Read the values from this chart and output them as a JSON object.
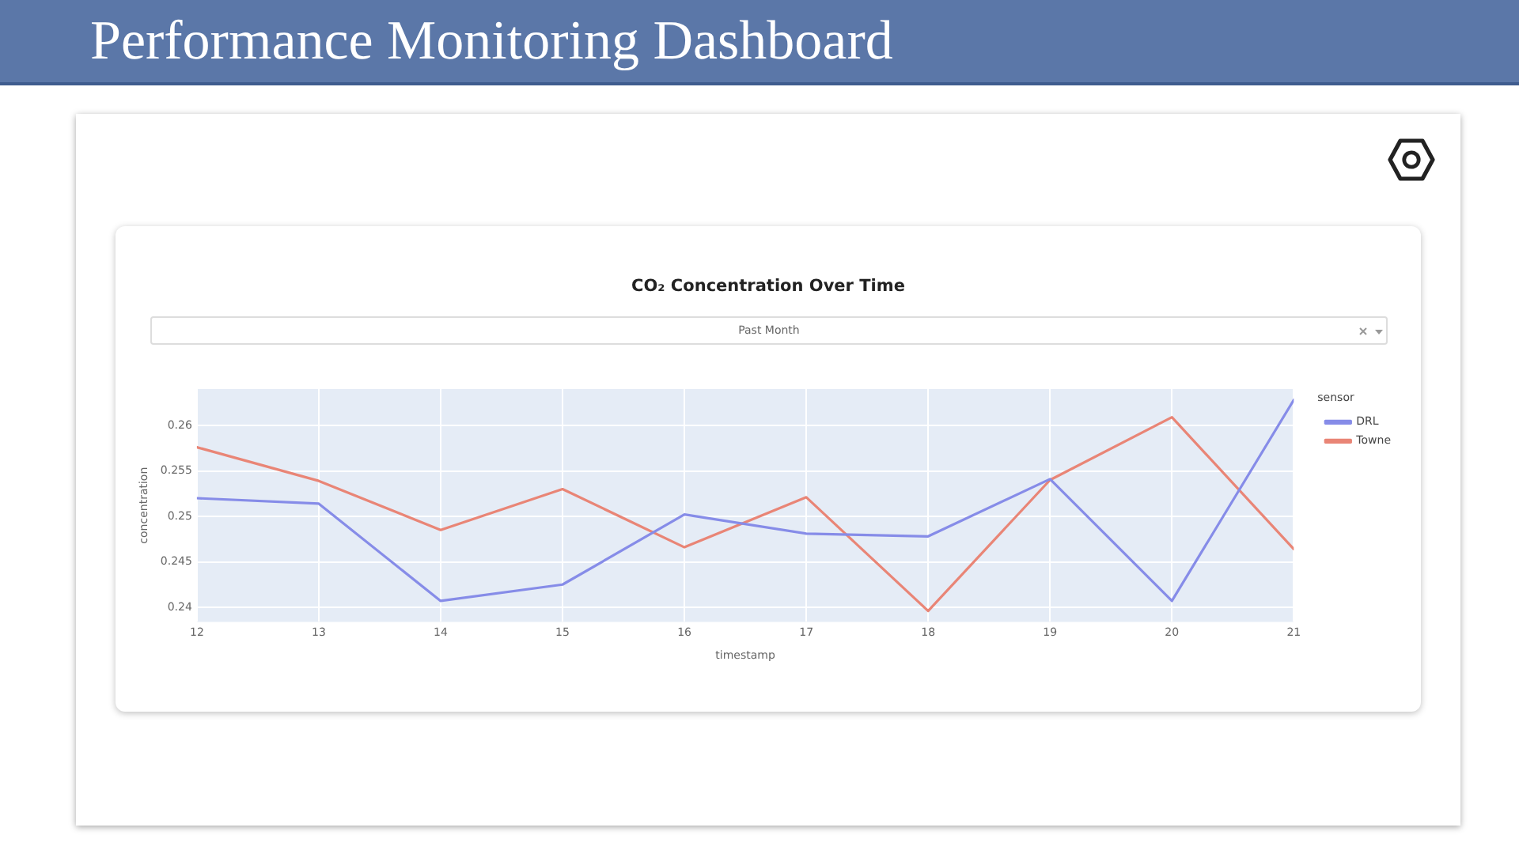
{
  "chart_data": {
    "type": "line",
    "title": "Performance Monitoring Dashboard",
    "subtitle": "CO₂ Concentration Over Time",
    "xlabel": "timestamp",
    "ylabel": "concentration",
    "legend_title": "sensor",
    "annotations": [
      "Past Month"
    ],
    "x": [
      12,
      13,
      14,
      15,
      16,
      17,
      18,
      19,
      20,
      21
    ],
    "series": [
      {
        "name": "DRL",
        "color": "#868ce8",
        "values": [
          0.252,
          0.2514,
          0.2407,
          0.2425,
          0.2502,
          0.2481,
          0.2478,
          0.2541,
          0.2407,
          0.2628
        ]
      },
      {
        "name": "Towne",
        "color": "#e98576",
        "values": [
          0.2576,
          0.2539,
          0.2485,
          0.253,
          0.2466,
          0.2521,
          0.2396,
          0.254,
          0.2609,
          0.2464
        ]
      }
    ],
    "xlim": [
      12,
      21
    ],
    "xticks": [
      12,
      13,
      14,
      15,
      16,
      17,
      18,
      19,
      20,
      21
    ],
    "ylim": [
      0.2384,
      0.264
    ],
    "yticks": [
      0.24,
      0.245,
      0.25,
      0.255,
      0.26
    ],
    "grid": true,
    "legend": "top right",
    "marker": "none",
    "line_style": "solid"
  }
}
